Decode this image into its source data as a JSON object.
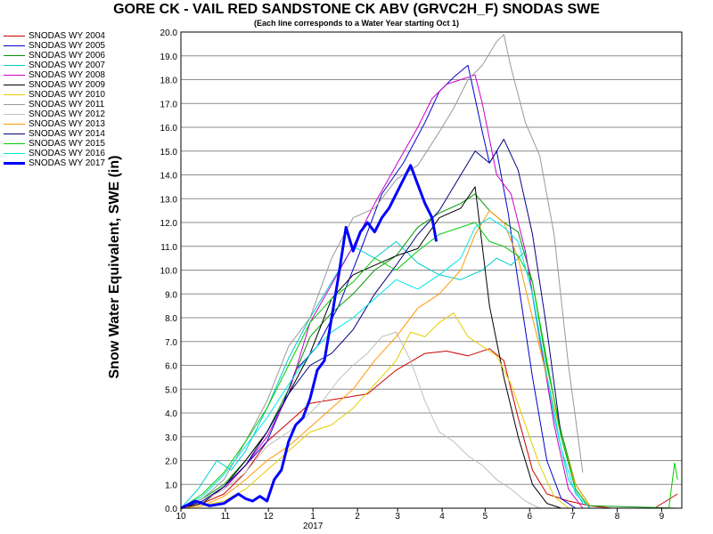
{
  "chart_data": {
    "type": "line",
    "title": "GORE CK - VAIL RED SANDSTONE CK ABV (GRVC2H_F) SNODAS SWE",
    "subtitle": "(Each line corresponds to a Water Year starting Oct 1)",
    "xlabel": "",
    "ylabel": "Snow Water Equivalent, SWE (in)",
    "ylim": [
      0,
      20
    ],
    "y_ticks": [
      "0.0",
      "1.0",
      "2.0",
      "3.0",
      "4.0",
      "5.0",
      "6.0",
      "7.0",
      "8.0",
      "9.0",
      "10.0",
      "11.0",
      "12.0",
      "13.0",
      "14.0",
      "15.0",
      "16.0",
      "17.0",
      "18.0",
      "19.0",
      "20.0"
    ],
    "x_ticks": [
      "10",
      "11",
      "12",
      "1",
      "2",
      "3",
      "4",
      "5",
      "6",
      "7",
      "8",
      "9"
    ],
    "x_year_label": "2017",
    "grid": true,
    "legend_position": "left",
    "series": [
      {
        "name": "SNODAS WY 2004",
        "color": "#cc0000",
        "width": 1,
        "x": [
          0,
          15,
          30,
          45,
          60,
          75,
          90,
          110,
          130,
          150,
          170,
          185,
          200,
          215,
          225,
          235,
          245,
          255,
          270,
          285,
          300,
          330,
          346
        ],
        "y": [
          0,
          0.2,
          0.6,
          1.5,
          2.8,
          3.6,
          4.4,
          4.6,
          4.8,
          5.8,
          6.5,
          6.6,
          6.4,
          6.7,
          6.2,
          3.8,
          1.6,
          0.6,
          0.3,
          0.1,
          0,
          0,
          0.6
        ]
      },
      {
        "name": "SNODAS WY 2005",
        "color": "#0000cc",
        "width": 1,
        "x": [
          0,
          15,
          30,
          45,
          60,
          70,
          80,
          95,
          110,
          125,
          140,
          155,
          170,
          180,
          190,
          200,
          210,
          215,
          220,
          228,
          235,
          245,
          255,
          265,
          275
        ],
        "y": [
          0,
          0.3,
          0.9,
          1.8,
          2.8,
          4.2,
          5.8,
          6.8,
          8.5,
          10.8,
          13.2,
          14.5,
          16.2,
          17.5,
          18.1,
          18.6,
          15.8,
          14.5,
          15.0,
          12.4,
          9.5,
          5.5,
          2.0,
          0.4,
          0
        ]
      },
      {
        "name": "SNODAS WY 2006",
        "color": "#009900",
        "width": 1,
        "x": [
          0,
          15,
          30,
          45,
          60,
          75,
          90,
          105,
          120,
          135,
          150,
          165,
          180,
          195,
          205,
          215,
          225,
          235,
          245,
          255,
          265,
          275,
          285,
          346
        ],
        "y": [
          0,
          0.4,
          1.0,
          2.0,
          3.2,
          5.0,
          7.2,
          8.2,
          9.0,
          10.0,
          10.6,
          11.8,
          12.4,
          12.8,
          13.2,
          12.5,
          12.0,
          11.6,
          9.5,
          6.0,
          3.2,
          1.0,
          0.1,
          0
        ]
      },
      {
        "name": "SNODAS WY 2007",
        "color": "#00cccc",
        "width": 1,
        "x": [
          0,
          12,
          25,
          35,
          45,
          60,
          75,
          90,
          105,
          120,
          135,
          150,
          165,
          180,
          195,
          210,
          220,
          230,
          240,
          250,
          260,
          270,
          280
        ],
        "y": [
          0,
          0.8,
          2.0,
          1.6,
          2.4,
          4.2,
          6.3,
          8.0,
          9.5,
          11.0,
          10.5,
          11.2,
          10.3,
          9.8,
          9.6,
          10.0,
          10.5,
          10.2,
          10.8,
          7.0,
          3.8,
          1.2,
          0.2
        ]
      },
      {
        "name": "SNODAS WY 2008",
        "color": "#cc00cc",
        "width": 1,
        "x": [
          0,
          15,
          30,
          45,
          60,
          75,
          90,
          105,
          120,
          135,
          150,
          165,
          175,
          185,
          195,
          205,
          210,
          220,
          230,
          240,
          250,
          260,
          270,
          280
        ],
        "y": [
          0,
          0.3,
          0.8,
          1.8,
          3.0,
          4.8,
          7.8,
          9.4,
          11.0,
          12.8,
          14.4,
          16.0,
          17.2,
          17.8,
          18.0,
          18.2,
          17.0,
          14.0,
          13.2,
          10.8,
          7.2,
          3.5,
          0.8,
          0
        ]
      },
      {
        "name": "SNODAS WY 2009",
        "color": "#000000",
        "width": 1,
        "x": [
          0,
          15,
          30,
          45,
          60,
          75,
          90,
          105,
          120,
          135,
          150,
          165,
          180,
          195,
          205,
          215,
          225,
          235,
          245,
          255,
          265
        ],
        "y": [
          0,
          0.2,
          0.9,
          2.0,
          3.2,
          4.8,
          6.5,
          8.8,
          9.8,
          10.2,
          10.6,
          10.9,
          12.2,
          12.6,
          13.5,
          8.5,
          5.5,
          3.0,
          1.0,
          0.2,
          0
        ]
      },
      {
        "name": "SNODAS WY 2010",
        "color": "#e6cc00",
        "width": 1,
        "x": [
          0,
          15,
          30,
          45,
          60,
          75,
          90,
          105,
          120,
          135,
          150,
          160,
          170,
          180,
          190,
          200,
          210,
          220,
          230,
          240,
          250,
          260,
          270
        ],
        "y": [
          0,
          0.1,
          0.3,
          0.8,
          1.6,
          2.4,
          3.2,
          3.5,
          4.2,
          5.2,
          6.2,
          7.4,
          7.2,
          7.8,
          8.2,
          7.2,
          6.8,
          6.4,
          5.2,
          3.5,
          1.8,
          0.5,
          0
        ]
      },
      {
        "name": "SNODAS WY 2011",
        "color": "#999999",
        "width": 1,
        "x": [
          0,
          15,
          30,
          45,
          60,
          75,
          90,
          105,
          120,
          135,
          150,
          165,
          180,
          190,
          200,
          210,
          220,
          225,
          230,
          240,
          250,
          260,
          270,
          280
        ],
        "y": [
          0,
          0.4,
          1.2,
          2.8,
          4.5,
          6.8,
          8.0,
          10.5,
          12.2,
          12.6,
          13.8,
          14.4,
          15.8,
          16.8,
          18.0,
          18.6,
          19.6,
          19.9,
          18.5,
          16.2,
          14.8,
          11.5,
          6.0,
          1.5
        ]
      },
      {
        "name": "SNODAS WY 2012",
        "color": "#c0c0c0",
        "width": 1,
        "x": [
          0,
          15,
          30,
          45,
          60,
          75,
          90,
          100,
          110,
          120,
          130,
          140,
          150,
          160,
          170,
          180,
          190,
          200,
          210,
          220,
          230,
          240,
          250
        ],
        "y": [
          0,
          0.3,
          0.8,
          1.5,
          2.6,
          3.2,
          4.0,
          4.6,
          5.4,
          6.0,
          6.5,
          7.2,
          7.4,
          6.2,
          4.5,
          3.2,
          2.8,
          2.2,
          1.8,
          1.2,
          0.8,
          0.3,
          0
        ]
      },
      {
        "name": "SNODAS WY 2013",
        "color": "#ff9900",
        "width": 1,
        "x": [
          0,
          15,
          30,
          45,
          60,
          75,
          90,
          105,
          120,
          135,
          150,
          165,
          180,
          195,
          205,
          215,
          225,
          235,
          245,
          255,
          265,
          275,
          285
        ],
        "y": [
          0,
          0.1,
          0.5,
          1.2,
          2.0,
          2.6,
          3.4,
          4.2,
          5.0,
          6.2,
          7.2,
          8.4,
          9.0,
          10.0,
          11.5,
          12.5,
          12.0,
          10.5,
          8.0,
          5.5,
          3.0,
          1.0,
          0.1
        ]
      },
      {
        "name": "SNODAS WY 2014",
        "color": "#000080",
        "width": 1,
        "x": [
          0,
          15,
          30,
          45,
          60,
          75,
          90,
          105,
          120,
          135,
          150,
          165,
          180,
          195,
          205,
          215,
          225,
          235,
          245,
          255,
          265,
          275,
          285
        ],
        "y": [
          0,
          0.3,
          0.9,
          1.8,
          3.2,
          4.8,
          6.0,
          6.5,
          7.5,
          9.0,
          10.2,
          11.5,
          12.5,
          14.0,
          15.0,
          14.5,
          15.5,
          14.2,
          11.5,
          7.5,
          3.0,
          0.8,
          0
        ]
      },
      {
        "name": "SNODAS WY 2015",
        "color": "#00cc00",
        "width": 1,
        "x": [
          0,
          15,
          30,
          45,
          60,
          75,
          90,
          105,
          120,
          135,
          150,
          165,
          180,
          195,
          205,
          215,
          225,
          235,
          245,
          255,
          265,
          275,
          285,
          340,
          344,
          346
        ],
        "y": [
          0,
          0.6,
          1.5,
          2.8,
          4.2,
          6.0,
          7.8,
          8.8,
          9.5,
          10.5,
          10.0,
          10.8,
          11.5,
          11.8,
          12.0,
          11.2,
          11.0,
          10.6,
          9.5,
          6.2,
          3.0,
          0.8,
          0,
          0,
          1.9,
          1.2
        ]
      },
      {
        "name": "SNODAS WY 2016",
        "color": "#00e6e6",
        "width": 1,
        "x": [
          0,
          15,
          30,
          45,
          60,
          75,
          90,
          105,
          120,
          135,
          150,
          165,
          180,
          195,
          205,
          215,
          225,
          235,
          245,
          255,
          265,
          275,
          285
        ],
        "y": [
          0,
          0.5,
          1.4,
          2.6,
          3.8,
          5.2,
          6.5,
          7.4,
          8.0,
          8.8,
          9.6,
          9.2,
          9.8,
          10.5,
          11.8,
          12.2,
          11.8,
          11.2,
          9.0,
          5.6,
          2.5,
          0.6,
          0
        ]
      },
      {
        "name": "SNODAS WY 2017",
        "color": "#0000ff",
        "width": 3,
        "x": [
          0,
          10,
          20,
          30,
          40,
          45,
          50,
          55,
          60,
          65,
          70,
          75,
          80,
          85,
          90,
          95,
          100,
          105,
          110,
          115,
          120,
          125,
          130,
          135,
          140,
          145,
          150,
          155,
          160,
          165,
          170,
          175,
          178
        ],
        "y": [
          0,
          0.3,
          0.1,
          0.2,
          0.6,
          0.4,
          0.3,
          0.5,
          0.3,
          1.2,
          1.6,
          2.8,
          3.5,
          3.8,
          4.6,
          5.8,
          6.2,
          8.0,
          9.8,
          11.8,
          10.8,
          11.6,
          12.0,
          11.6,
          12.2,
          12.6,
          13.2,
          13.8,
          14.4,
          13.6,
          12.8,
          12.2,
          11.2
        ]
      }
    ]
  }
}
